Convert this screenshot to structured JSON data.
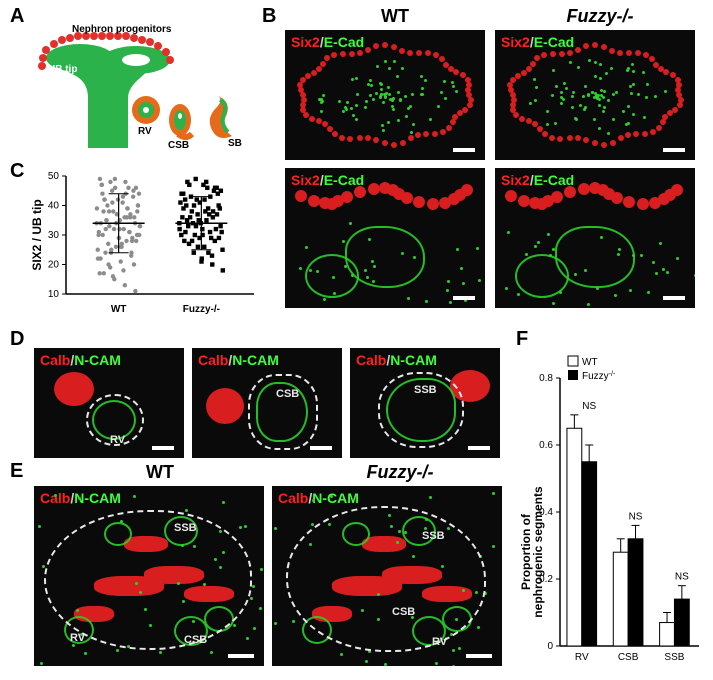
{
  "labels": {
    "A": "A",
    "B": "B",
    "C": "C",
    "D": "D",
    "E": "E",
    "F": "F",
    "wt": "WT",
    "fuzzy": "Fuzzy-/-"
  },
  "schematic": {
    "nephron_prog": "Nephron progenitors",
    "ub_tip": "UB tip",
    "rv": "RV",
    "csb": "CSB",
    "sb": "SB",
    "colors": {
      "ub": "#2bb24a",
      "prog": "#e3302a",
      "outline": "#e56a1a"
    }
  },
  "panelB": {
    "marker_red": "Six2",
    "marker_green": "E-Cad",
    "scalebar_width": 22
  },
  "panelC": {
    "y_label": "SIX2 / UB tip",
    "ylim": [
      10,
      50
    ],
    "yticks": [
      10,
      20,
      30,
      40,
      50
    ],
    "groups": [
      "WT",
      "Fuzzy-/-"
    ],
    "wt_points": [
      34,
      36,
      32,
      38,
      30,
      28,
      26,
      24,
      22,
      20,
      18,
      16,
      44,
      46,
      48,
      49,
      42,
      40,
      39,
      37,
      35,
      33,
      31,
      29,
      27,
      25,
      23,
      21,
      19,
      17,
      43,
      41,
      45,
      47,
      34,
      36,
      32,
      38,
      30,
      28,
      26,
      24,
      44,
      46,
      42,
      40,
      39,
      37,
      35,
      33,
      31,
      29,
      27,
      25,
      34,
      36,
      32,
      38,
      30,
      28,
      44,
      46,
      42,
      40,
      39,
      37,
      35,
      33,
      31,
      29,
      20,
      22,
      24,
      26,
      48,
      49,
      45,
      43,
      41,
      47,
      11,
      13,
      15,
      17,
      38,
      36,
      34,
      32,
      30
    ],
    "fz_points": [
      34,
      36,
      32,
      38,
      30,
      28,
      26,
      24,
      44,
      46,
      48,
      49,
      42,
      40,
      39,
      37,
      35,
      33,
      31,
      29,
      27,
      25,
      23,
      21,
      43,
      41,
      45,
      47,
      34,
      36,
      32,
      38,
      30,
      28,
      44,
      46,
      42,
      40,
      39,
      37,
      35,
      33,
      31,
      29,
      34,
      36,
      32,
      38,
      30,
      28,
      44,
      46,
      42,
      40,
      39,
      37,
      35,
      33,
      31,
      29,
      24,
      26,
      48,
      45,
      43,
      41,
      47,
      18,
      20,
      22
    ],
    "mean_wt": 34,
    "sd_wt": 10,
    "mean_fz": 34,
    "sd_fz": 9,
    "wt_color": "#8c8c8c",
    "fz_color": "#000000"
  },
  "panelD": {
    "marker_red": "Calb",
    "marker_green": "N-CAM",
    "stages": [
      "RV",
      "CSB",
      "SSB"
    ],
    "scalebar_width": 22
  },
  "panelE": {
    "marker_red": "Calb",
    "marker_green": "N-CAM",
    "annot": [
      "RV",
      "CSB",
      "SSB"
    ],
    "scalebar_width": 26
  },
  "panelF": {
    "y_label": "Proportion of nephrogenic segments",
    "ylim": [
      0,
      0.8
    ],
    "yticks": [
      0,
      0.2,
      0.4,
      0.6,
      0.8
    ],
    "categories": [
      "RV",
      "CSB",
      "SSB"
    ],
    "series": [
      {
        "name": "WT",
        "color": "#ffffff",
        "values": [
          0.65,
          0.28,
          0.07
        ],
        "err": [
          0.04,
          0.04,
          0.03
        ]
      },
      {
        "name": "Fuzzy-/-",
        "color": "#000000",
        "values": [
          0.55,
          0.32,
          0.14
        ],
        "err": [
          0.05,
          0.04,
          0.04
        ]
      }
    ],
    "sig": [
      "NS",
      "NS",
      "NS"
    ],
    "legend": {
      "wt": "WT",
      "fz": "Fuzzy"
    }
  }
}
